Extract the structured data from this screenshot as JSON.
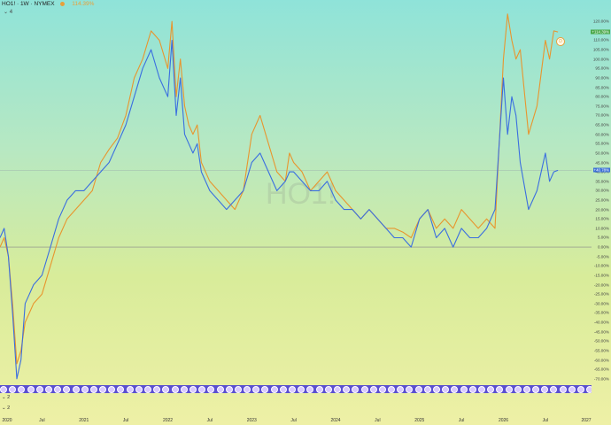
{
  "header": {
    "symbol": "HO1! · 1W · NYMEX",
    "change": "114.39%",
    "collapse_label": "4"
  },
  "watermark": "HO1!",
  "indicator_panes": [
    {
      "label": "2"
    },
    {
      "label": "2"
    }
  ],
  "badge": {
    "label": "D"
  },
  "colors": {
    "orange": "#e8952e",
    "blue": "#3a6ee0",
    "zero_line": "#888888"
  },
  "price_tags": [
    {
      "text": "+114.39%",
      "color": "orange",
      "y": 114.4
    },
    {
      "text": "+40.78%",
      "color": "blue",
      "y": 40.8
    }
  ],
  "chart_data": {
    "type": "line",
    "ylim": [
      -72,
      122
    ],
    "yticks": [
      "120.00%",
      "115.00%",
      "110.00%",
      "105.00%",
      "100.00%",
      "95.00%",
      "90.00%",
      "85.00%",
      "80.00%",
      "75.00%",
      "70.00%",
      "65.00%",
      "60.00%",
      "55.00%",
      "50.00%",
      "45.00%",
      "40.00%",
      "35.00%",
      "30.00%",
      "25.00%",
      "20.00%",
      "15.00%",
      "10.00%",
      "5.00%",
      "0.00%",
      "-5.00%",
      "-10.00%",
      "-15.00%",
      "-20.00%",
      "-25.00%",
      "-30.00%",
      "-35.00%",
      "-40.00%",
      "-45.00%",
      "-50.00%",
      "-55.00%",
      "-60.00%",
      "-65.00%",
      "-70.00%"
    ],
    "xticks": [
      {
        "label": "2020",
        "pos": 0.0
      },
      {
        "label": "Jul",
        "pos": 0.5
      },
      {
        "label": "2021",
        "pos": 1.0
      },
      {
        "label": "Jul",
        "pos": 1.5
      },
      {
        "label": "2022",
        "pos": 2.0
      },
      {
        "label": "Jul",
        "pos": 2.5
      },
      {
        "label": "2023",
        "pos": 3.0
      },
      {
        "label": "Jul",
        "pos": 3.5
      },
      {
        "label": "2024",
        "pos": 4.0
      },
      {
        "label": "Jul",
        "pos": 4.5
      },
      {
        "label": "2025",
        "pos": 5.0
      },
      {
        "label": "Jul",
        "pos": 5.5
      },
      {
        "label": "2026",
        "pos": 6.0
      },
      {
        "label": "Jul",
        "pos": 6.5
      },
      {
        "label": "2027",
        "pos": 7.0
      }
    ],
    "series": [
      {
        "color": "orange",
        "x": [
          0.0,
          0.05,
          0.1,
          0.15,
          0.2,
          0.25,
          0.3,
          0.35,
          0.4,
          0.5,
          0.6,
          0.7,
          0.8,
          0.9,
          1.0,
          1.1,
          1.2,
          1.3,
          1.4,
          1.5,
          1.6,
          1.7,
          1.8,
          1.9,
          2.0,
          2.05,
          2.1,
          2.15,
          2.2,
          2.25,
          2.3,
          2.35,
          2.4,
          2.5,
          2.6,
          2.7,
          2.8,
          2.9,
          3.0,
          3.1,
          3.2,
          3.3,
          3.4,
          3.45,
          3.5,
          3.6,
          3.7,
          3.8,
          3.9,
          4.0,
          4.1,
          4.2,
          4.3,
          4.4,
          4.5,
          4.6,
          4.7,
          4.8,
          4.9,
          5.0,
          5.1,
          5.2,
          5.3,
          5.4,
          5.5,
          5.6,
          5.7,
          5.8,
          5.9,
          6.0,
          6.05,
          6.1,
          6.15,
          6.2,
          6.3,
          6.4,
          6.5,
          6.55,
          6.6,
          6.65
        ],
        "y": [
          0,
          5,
          -5,
          -30,
          -62,
          -55,
          -40,
          -35,
          -30,
          -25,
          -10,
          5,
          15,
          20,
          25,
          30,
          45,
          52,
          58,
          70,
          90,
          100,
          115,
          110,
          95,
          120,
          80,
          100,
          75,
          65,
          60,
          65,
          45,
          35,
          30,
          25,
          20,
          30,
          60,
          70,
          55,
          40,
          35,
          50,
          45,
          40,
          30,
          35,
          40,
          30,
          25,
          20,
          15,
          20,
          15,
          10,
          10,
          8,
          5,
          15,
          20,
          10,
          15,
          10,
          20,
          15,
          10,
          15,
          10,
          100,
          124,
          110,
          100,
          105,
          60,
          75,
          110,
          100,
          115,
          114.4
        ]
      },
      {
        "color": "blue",
        "x": [
          0.0,
          0.05,
          0.1,
          0.15,
          0.2,
          0.25,
          0.3,
          0.35,
          0.4,
          0.5,
          0.6,
          0.7,
          0.8,
          0.9,
          1.0,
          1.1,
          1.2,
          1.3,
          1.4,
          1.5,
          1.6,
          1.7,
          1.8,
          1.9,
          2.0,
          2.05,
          2.1,
          2.15,
          2.2,
          2.25,
          2.3,
          2.35,
          2.4,
          2.5,
          2.6,
          2.7,
          2.8,
          2.9,
          3.0,
          3.1,
          3.2,
          3.3,
          3.4,
          3.45,
          3.5,
          3.6,
          3.7,
          3.8,
          3.9,
          4.0,
          4.1,
          4.2,
          4.3,
          4.4,
          4.5,
          4.6,
          4.7,
          4.8,
          4.9,
          5.0,
          5.1,
          5.2,
          5.3,
          5.4,
          5.5,
          5.6,
          5.7,
          5.8,
          5.9,
          6.0,
          6.05,
          6.1,
          6.15,
          6.2,
          6.3,
          6.4,
          6.5,
          6.55,
          6.6,
          6.65
        ],
        "y": [
          5,
          10,
          -5,
          -35,
          -70,
          -60,
          -30,
          -25,
          -20,
          -15,
          0,
          15,
          25,
          30,
          30,
          35,
          40,
          45,
          55,
          65,
          80,
          95,
          105,
          90,
          80,
          110,
          70,
          90,
          60,
          55,
          50,
          55,
          40,
          30,
          25,
          20,
          25,
          30,
          45,
          50,
          40,
          30,
          35,
          40,
          40,
          35,
          30,
          30,
          35,
          25,
          20,
          20,
          15,
          20,
          15,
          10,
          5,
          5,
          0,
          15,
          20,
          5,
          10,
          0,
          10,
          5,
          5,
          10,
          20,
          90,
          60,
          80,
          70,
          45,
          20,
          30,
          50,
          35,
          40,
          40.8
        ]
      }
    ]
  }
}
